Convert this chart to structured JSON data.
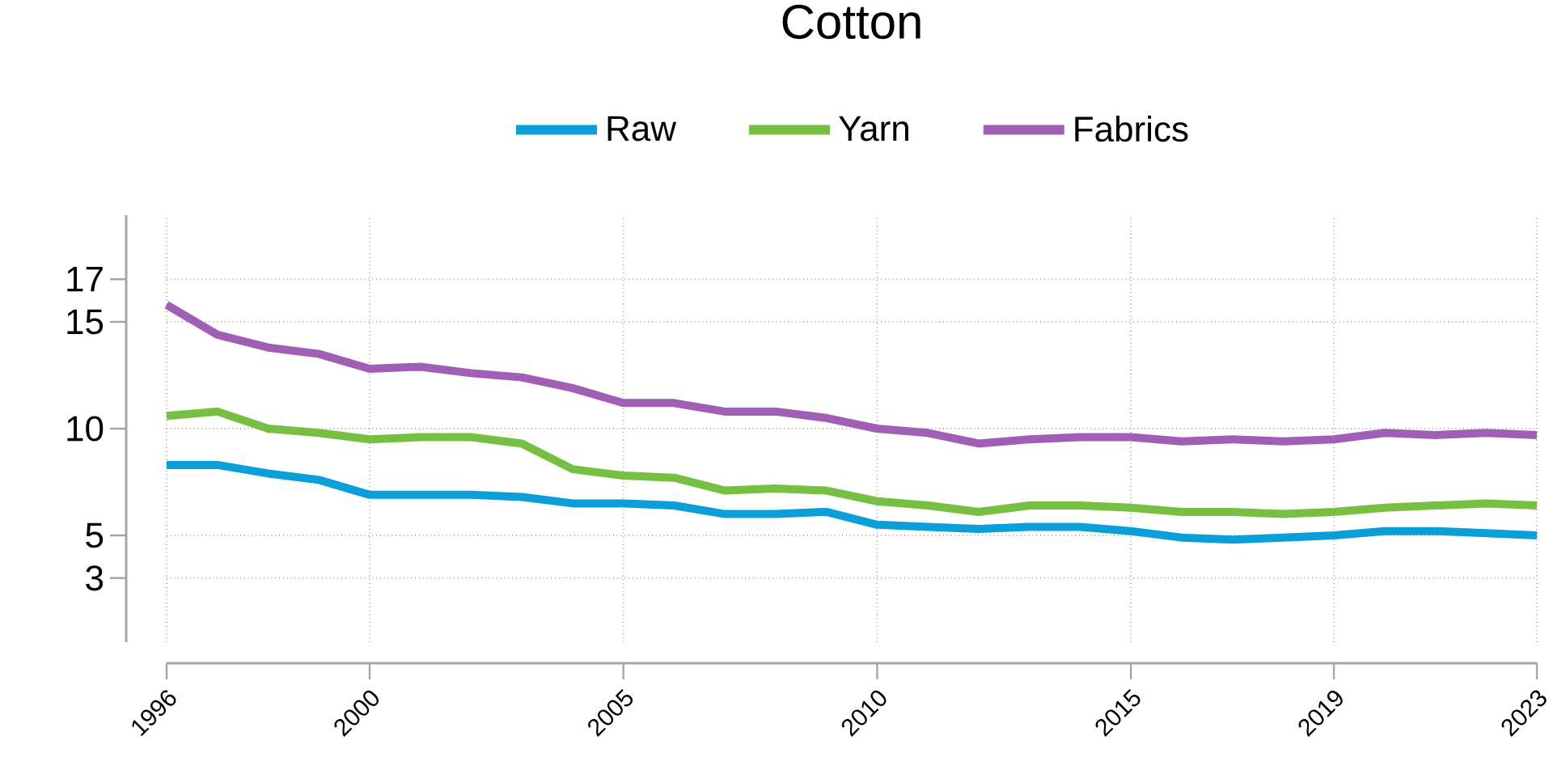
{
  "chart_data": {
    "type": "line",
    "title": "Cotton",
    "x": [
      1996,
      1997,
      1998,
      1999,
      2000,
      2001,
      2002,
      2003,
      2004,
      2005,
      2006,
      2007,
      2008,
      2009,
      2010,
      2011,
      2012,
      2013,
      2014,
      2015,
      2016,
      2017,
      2018,
      2019,
      2020,
      2021,
      2022,
      2023
    ],
    "series": [
      {
        "name": "Raw",
        "color": "#0a9fd8",
        "values": [
          8.3,
          8.3,
          7.9,
          7.6,
          6.9,
          6.9,
          6.9,
          6.8,
          6.5,
          6.5,
          6.4,
          6.0,
          6.0,
          6.1,
          5.5,
          5.4,
          5.3,
          5.4,
          5.4,
          5.2,
          4.9,
          4.8,
          4.9,
          5.0,
          5.2,
          5.2,
          5.1,
          5.0
        ]
      },
      {
        "name": "Yarn",
        "color": "#77bf43",
        "values": [
          10.6,
          10.8,
          10.0,
          9.8,
          9.5,
          9.6,
          9.6,
          9.3,
          8.1,
          7.8,
          7.7,
          7.1,
          7.2,
          7.1,
          6.6,
          6.4,
          6.1,
          6.4,
          6.4,
          6.3,
          6.1,
          6.1,
          6.0,
          6.1,
          6.3,
          6.4,
          6.5,
          6.4
        ]
      },
      {
        "name": "Fabrics",
        "color": "#a05fb4",
        "values": [
          15.8,
          14.4,
          13.8,
          13.5,
          12.8,
          12.9,
          12.6,
          12.4,
          11.9,
          11.2,
          11.2,
          10.8,
          10.8,
          10.5,
          10.0,
          9.8,
          9.3,
          9.5,
          9.6,
          9.6,
          9.4,
          9.5,
          9.4,
          9.5,
          9.8,
          9.7,
          9.8,
          9.7
        ]
      }
    ],
    "xlim": [
      1996,
      2023
    ],
    "xticks": [
      1996,
      2000,
      2005,
      2010,
      2015,
      2019,
      2023
    ],
    "ylim": [
      0,
      20
    ],
    "yticks": [
      3,
      5,
      10,
      15,
      17
    ],
    "grid": true,
    "legend": "top",
    "line_style": "solid",
    "marker": "none"
  }
}
